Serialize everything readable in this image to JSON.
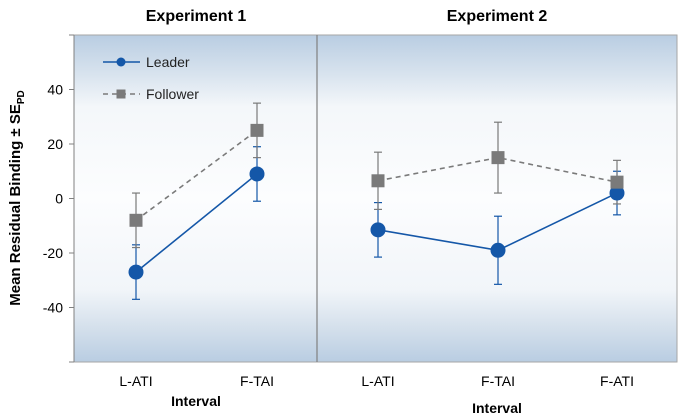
{
  "chart_data": [
    {
      "type": "line",
      "title": "Experiment 1",
      "xlabel": "Interval",
      "ylabel_main": "Mean Residual Binding ± SE",
      "ylabel_sub": "PD",
      "ylim": [
        -60,
        60
      ],
      "yticks": [
        40,
        20,
        0,
        -20,
        -40
      ],
      "categories": [
        "L-ATI",
        "F-TAI"
      ],
      "series": [
        {
          "name": "Leader",
          "values": [
            -27,
            9
          ],
          "errors": [
            10,
            10
          ],
          "color": "#1457a8",
          "marker": "circle",
          "dash": "solid"
        },
        {
          "name": "Follower",
          "values": [
            -8,
            25
          ],
          "errors": [
            10,
            10
          ],
          "color": "#7a7a7a",
          "marker": "square",
          "dash": "dashed"
        }
      ],
      "legend": [
        "Leader",
        "Follower"
      ]
    },
    {
      "type": "line",
      "title": "Experiment 2",
      "xlabel": "Interval",
      "ylim": [
        -60,
        60
      ],
      "categories": [
        "L-ATI",
        "F-TAI",
        "F-ATI"
      ],
      "series": [
        {
          "name": "Leader",
          "values": [
            -11.5,
            -19,
            2
          ],
          "errors": [
            10,
            12.5,
            8
          ],
          "color": "#1457a8",
          "marker": "circle",
          "dash": "solid"
        },
        {
          "name": "Follower",
          "values": [
            6.5,
            15,
            6
          ],
          "errors": [
            10.5,
            13,
            8
          ],
          "color": "#7a7a7a",
          "marker": "square",
          "dash": "dashed"
        }
      ]
    }
  ],
  "colors": {
    "panel_edge": "#b9cde2",
    "panel_mid": "#fbfcfd",
    "leader": "#1457a8",
    "follower": "#7a7a7a"
  }
}
